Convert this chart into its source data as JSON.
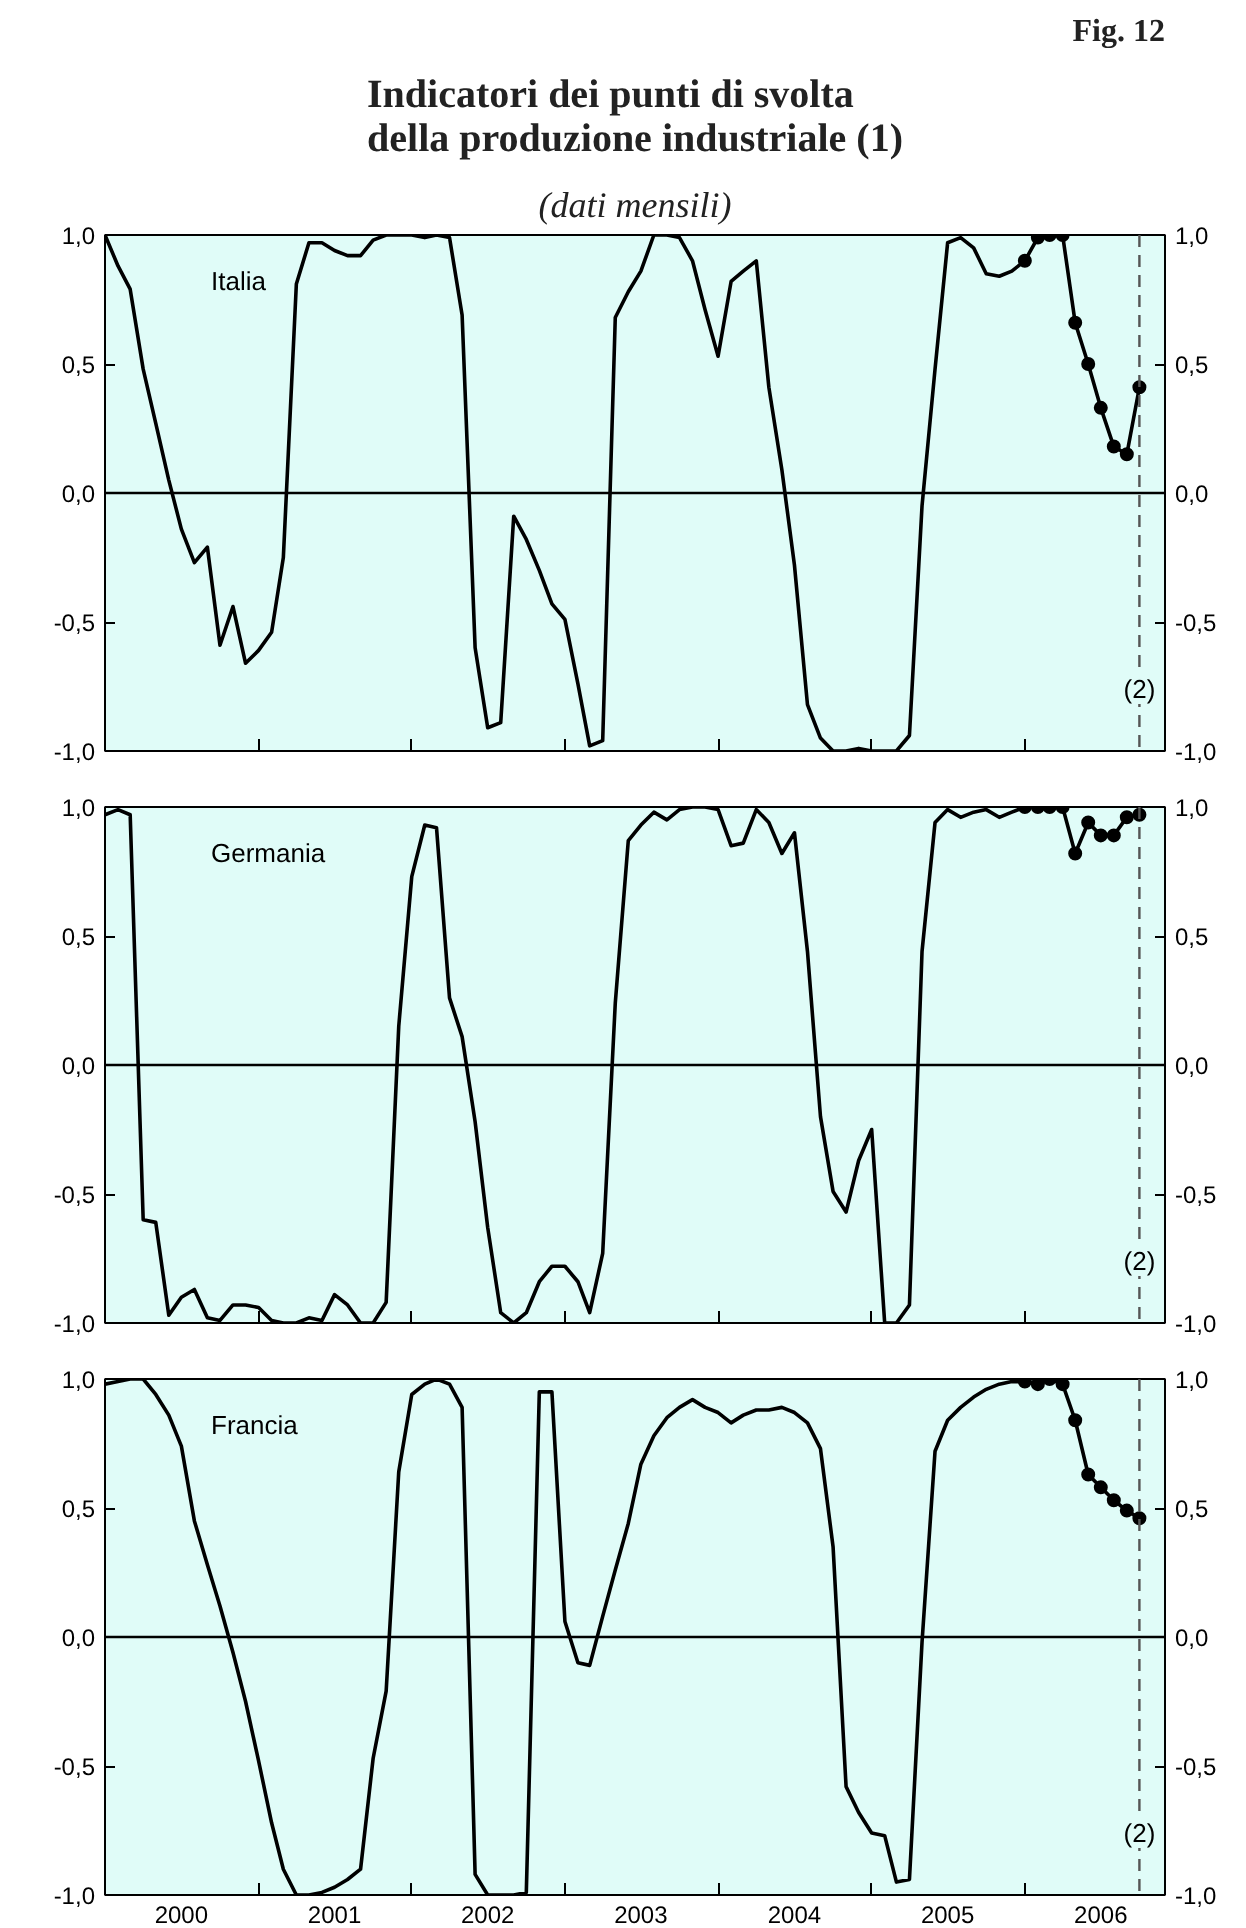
{
  "chart_data": [
    {
      "type": "line",
      "title": "Indicatori dei punti di svolta\ndella produzione industriale (1)",
      "subtitle": "(dati mensili)",
      "annotations": [
        "Fig. 12"
      ],
      "x": [
        "2000-01",
        "2000-02",
        "2000-03",
        "2000-04",
        "2000-05",
        "2000-06",
        "2000-07",
        "2000-08",
        "2000-09",
        "2000-10",
        "2000-11",
        "2000-12",
        "2001-01",
        "2001-02",
        "2001-03",
        "2001-04",
        "2001-05",
        "2001-06",
        "2001-07",
        "2001-08",
        "2001-09",
        "2001-10",
        "2001-11",
        "2001-12",
        "2002-01",
        "2002-02",
        "2002-03",
        "2002-04",
        "2002-05",
        "2002-06",
        "2002-07",
        "2002-08",
        "2002-09",
        "2002-10",
        "2002-11",
        "2002-12",
        "2003-01",
        "2003-02",
        "2003-03",
        "2003-04",
        "2003-05",
        "2003-06",
        "2003-07",
        "2003-08",
        "2003-09",
        "2003-10",
        "2003-11",
        "2003-12",
        "2004-01",
        "2004-02",
        "2004-03",
        "2004-04",
        "2004-05",
        "2004-06",
        "2004-07",
        "2004-08",
        "2004-09",
        "2004-10",
        "2004-11",
        "2004-12",
        "2005-01",
        "2005-02",
        "2005-03",
        "2005-04",
        "2005-05",
        "2005-06",
        "2005-07",
        "2005-08",
        "2005-09",
        "2005-10",
        "2005-11",
        "2005-12",
        "2006-01"
      ],
      "series": [
        {
          "name": "Italia",
          "color": "#000000",
          "marker": "none",
          "values": [
            1.0,
            0.88,
            0.79,
            0.48,
            0.27,
            0.05,
            -0.14,
            -0.27,
            -0.21,
            -0.59,
            -0.44,
            -0.66,
            -0.61,
            -0.54,
            -0.25,
            0.81,
            0.97,
            0.97,
            0.94,
            0.92,
            0.92,
            0.98,
            1.0,
            1.0,
            1.0,
            0.99,
            1.0,
            0.99,
            0.69,
            -0.6,
            -0.91,
            -0.89,
            -0.09,
            -0.18,
            -0.3,
            -0.43,
            -0.49,
            -0.74,
            -0.98,
            -0.96,
            0.68,
            0.78,
            0.86,
            1.0,
            1.0,
            0.99,
            0.9,
            0.71,
            0.53,
            0.82,
            0.86,
            0.9,
            0.41,
            0.09,
            -0.28,
            -0.82,
            -0.95,
            -1.0,
            -1.0,
            -0.99,
            -1.0,
            -1.0,
            -1.0,
            -0.94,
            -0.05,
            0.48,
            0.97,
            0.99,
            0.95,
            0.85,
            0.84,
            0.86,
            0.9
          ]
        },
        {
          "color": "#000000",
          "marker": "circle",
          "x": [
            "2006-01",
            "2006-02",
            "2006-03",
            "2006-04",
            "2006-05",
            "2006-06",
            "2006-07",
            "2006-08",
            "2006-09",
            "2006-10"
          ],
          "values": [
            0.9,
            0.99,
            1.0,
            1.0,
            0.66,
            0.5,
            0.33,
            0.18,
            0.15,
            0.41
          ]
        }
      ],
      "xlim": [
        "2000-01",
        "2006-12"
      ],
      "xticks": [
        {
          "value": "2001-01",
          "label": null
        },
        {
          "value": "2002-01",
          "label": null
        },
        {
          "value": "2003-01",
          "label": null
        },
        {
          "value": "2004-01",
          "label": null
        },
        {
          "value": "2005-01",
          "label": null
        },
        {
          "value": "2006-01",
          "label": null
        }
      ],
      "ylim": [
        -1,
        1
      ],
      "yticks": [
        {
          "value": -1,
          "label": "-1,0"
        },
        {
          "value": -0.5,
          "label": "-0,5"
        },
        {
          "value": 0,
          "label": "0,0"
        },
        {
          "value": 0.5,
          "label": "0,5"
        },
        {
          "value": 1,
          "label": "1,0"
        }
      ],
      "y2lim": [
        -1,
        1
      ],
      "y2ticks": [
        {
          "value": -1,
          "label": "-1,0"
        },
        {
          "value": -0.5,
          "label": "-0,5"
        },
        {
          "value": 0,
          "label": "0,0"
        },
        {
          "value": 0.5,
          "label": "0,5"
        },
        {
          "value": 1,
          "label": "1,0"
        }
      ],
      "ref_lines": [
        {
          "axis": "y",
          "value": 0,
          "color": "#000000",
          "line_style": "solid"
        },
        {
          "axis": "x",
          "value": "2006-10",
          "label": "(2)",
          "color": "#555555",
          "line_style": "dashed"
        }
      ],
      "grid": false,
      "tick_labels": "y"
    },
    {
      "type": "line",
      "x": [
        "2000-01",
        "2000-02",
        "2000-03",
        "2000-04",
        "2000-05",
        "2000-06",
        "2000-07",
        "2000-08",
        "2000-09",
        "2000-10",
        "2000-11",
        "2000-12",
        "2001-01",
        "2001-02",
        "2001-03",
        "2001-04",
        "2001-05",
        "2001-06",
        "2001-07",
        "2001-08",
        "2001-09",
        "2001-10",
        "2001-11",
        "2001-12",
        "2002-01",
        "2002-02",
        "2002-03",
        "2002-04",
        "2002-05",
        "2002-06",
        "2002-07",
        "2002-08",
        "2002-09",
        "2002-10",
        "2002-11",
        "2002-12",
        "2003-01",
        "2003-02",
        "2003-03",
        "2003-04",
        "2003-05",
        "2003-06",
        "2003-07",
        "2003-08",
        "2003-09",
        "2003-10",
        "2003-11",
        "2003-12",
        "2004-01",
        "2004-02",
        "2004-03",
        "2004-04",
        "2004-05",
        "2004-06",
        "2004-07",
        "2004-08",
        "2004-09",
        "2004-10",
        "2004-11",
        "2004-12",
        "2005-01",
        "2005-02",
        "2005-03",
        "2005-04",
        "2005-05",
        "2005-06",
        "2005-07",
        "2005-08",
        "2005-09",
        "2005-10",
        "2005-11",
        "2005-12",
        "2006-01"
      ],
      "series": [
        {
          "name": "Germania",
          "color": "#000000",
          "marker": "none",
          "values": [
            0.97,
            0.99,
            0.97,
            -0.6,
            -0.61,
            -0.97,
            -0.9,
            -0.87,
            -0.98,
            -0.99,
            -0.93,
            -0.93,
            -0.94,
            -0.99,
            -1.0,
            -1.0,
            -0.98,
            -0.99,
            -0.89,
            -0.93,
            -1.0,
            -1.0,
            -0.92,
            0.15,
            0.73,
            0.93,
            0.92,
            0.26,
            0.11,
            -0.22,
            -0.63,
            -0.96,
            -1.0,
            -0.96,
            -0.84,
            -0.78,
            -0.78,
            -0.84,
            -0.96,
            -0.73,
            0.24,
            0.87,
            0.93,
            0.98,
            0.95,
            0.99,
            1.0,
            1.0,
            0.99,
            0.85,
            0.86,
            0.99,
            0.94,
            0.82,
            0.9,
            0.44,
            -0.2,
            -0.49,
            -0.57,
            -0.37,
            -0.25,
            -1.0,
            -1.0,
            -0.93,
            0.44,
            0.94,
            0.99,
            0.96,
            0.98,
            0.99,
            0.96,
            0.98,
            1.0
          ]
        },
        {
          "color": "#000000",
          "marker": "circle",
          "x": [
            "2006-01",
            "2006-02",
            "2006-03",
            "2006-04",
            "2006-05",
            "2006-06",
            "2006-07",
            "2006-08",
            "2006-09",
            "2006-10"
          ],
          "values": [
            1.0,
            1.0,
            1.0,
            1.0,
            0.82,
            0.94,
            0.89,
            0.89,
            0.96,
            0.97
          ]
        }
      ],
      "xlim": [
        "2000-01",
        "2006-12"
      ],
      "xticks": [
        {
          "value": "2001-01",
          "label": null
        },
        {
          "value": "2002-01",
          "label": null
        },
        {
          "value": "2003-01",
          "label": null
        },
        {
          "value": "2004-01",
          "label": null
        },
        {
          "value": "2005-01",
          "label": null
        },
        {
          "value": "2006-01",
          "label": null
        }
      ],
      "ylim": [
        -1,
        1
      ],
      "yticks": [
        {
          "value": -1,
          "label": "-1,0"
        },
        {
          "value": -0.5,
          "label": "-0,5"
        },
        {
          "value": 0,
          "label": "0,0"
        },
        {
          "value": 0.5,
          "label": "0,5"
        },
        {
          "value": 1,
          "label": "1,0"
        }
      ],
      "y2lim": [
        -1,
        1
      ],
      "y2ticks": [
        {
          "value": -1,
          "label": "-1,0"
        },
        {
          "value": -0.5,
          "label": "-0,5"
        },
        {
          "value": 0,
          "label": "0,0"
        },
        {
          "value": 0.5,
          "label": "0,5"
        },
        {
          "value": 1,
          "label": "1,0"
        }
      ],
      "ref_lines": [
        {
          "axis": "y",
          "value": 0,
          "color": "#000000",
          "line_style": "solid"
        },
        {
          "axis": "x",
          "value": "2006-10",
          "label": "(2)",
          "color": "#555555",
          "line_style": "dashed"
        }
      ],
      "grid": false,
      "tick_labels": "y"
    },
    {
      "type": "line",
      "x": [
        "2000-01",
        "2000-02",
        "2000-03",
        "2000-04",
        "2000-05",
        "2000-06",
        "2000-07",
        "2000-08",
        "2000-09",
        "2000-10",
        "2000-11",
        "2000-12",
        "2001-01",
        "2001-02",
        "2001-03",
        "2001-04",
        "2001-05",
        "2001-06",
        "2001-07",
        "2001-08",
        "2001-09",
        "2001-10",
        "2001-11",
        "2001-12",
        "2002-01",
        "2002-02",
        "2002-03",
        "2002-04",
        "2002-05",
        "2002-06",
        "2002-07",
        "2002-08",
        "2002-09",
        "2002-10",
        "2002-11",
        "2002-12",
        "2003-01",
        "2003-02",
        "2003-03",
        "2003-04",
        "2003-05",
        "2003-06",
        "2003-07",
        "2003-08",
        "2003-09",
        "2003-10",
        "2003-11",
        "2003-12",
        "2004-01",
        "2004-02",
        "2004-03",
        "2004-04",
        "2004-05",
        "2004-06",
        "2004-07",
        "2004-08",
        "2004-09",
        "2004-10",
        "2004-11",
        "2004-12",
        "2005-01",
        "2005-02",
        "2005-03",
        "2005-04",
        "2005-05",
        "2005-06",
        "2005-07",
        "2005-08",
        "2005-09",
        "2005-10",
        "2005-11",
        "2005-12",
        "2006-01"
      ],
      "series": [
        {
          "name": "Francia",
          "color": "#000000",
          "marker": "none",
          "values": [
            0.98,
            0.99,
            1.0,
            1.0,
            0.94,
            0.86,
            0.74,
            0.45,
            0.28,
            0.12,
            -0.06,
            -0.25,
            -0.48,
            -0.72,
            -0.9,
            -1.0,
            -1.0,
            -0.99,
            -0.97,
            -0.94,
            -0.9,
            -0.47,
            -0.21,
            0.64,
            0.94,
            0.98,
            1.0,
            0.98,
            0.89,
            -0.92,
            -1.0,
            -1.0,
            -1.0,
            -0.99,
            0.95,
            0.95,
            0.06,
            -0.1,
            -0.11,
            0.08,
            0.26,
            0.44,
            0.67,
            0.78,
            0.85,
            0.89,
            0.92,
            0.89,
            0.87,
            0.83,
            0.86,
            0.88,
            0.88,
            0.89,
            0.87,
            0.83,
            0.73,
            0.35,
            -0.58,
            -0.68,
            -0.76,
            -0.77,
            -0.95,
            -0.94,
            -0.02,
            0.72,
            0.84,
            0.89,
            0.93,
            0.96,
            0.98,
            0.99,
            0.99
          ]
        },
        {
          "color": "#000000",
          "marker": "circle",
          "x": [
            "2006-01",
            "2006-02",
            "2006-03",
            "2006-04",
            "2006-05",
            "2006-06",
            "2006-07",
            "2006-08",
            "2006-09",
            "2006-10"
          ],
          "values": [
            0.99,
            0.98,
            1.0,
            0.98,
            0.84,
            0.63,
            0.58,
            0.53,
            0.49,
            0.46
          ]
        }
      ],
      "xlim": [
        "2000-01",
        "2006-12"
      ],
      "xticks": [
        {
          "value": "2000-07",
          "label": "2000"
        },
        {
          "value": "2001-07",
          "label": "2001"
        },
        {
          "value": "2002-07",
          "label": "2002"
        },
        {
          "value": "2003-07",
          "label": "2003"
        },
        {
          "value": "2004-07",
          "label": "2004"
        },
        {
          "value": "2005-07",
          "label": "2005"
        },
        {
          "value": "2006-07",
          "label": "2006"
        },
        {
          "value": "2001-01",
          "label": null
        },
        {
          "value": "2002-01",
          "label": null
        },
        {
          "value": "2003-01",
          "label": null
        },
        {
          "value": "2004-01",
          "label": null
        },
        {
          "value": "2005-01",
          "label": null
        },
        {
          "value": "2006-01",
          "label": null
        }
      ],
      "ylim": [
        -1,
        1
      ],
      "yticks": [
        {
          "value": -1,
          "label": "-1,0"
        },
        {
          "value": -0.5,
          "label": "-0,5"
        },
        {
          "value": 0,
          "label": "0,0"
        },
        {
          "value": 0.5,
          "label": "0,5"
        },
        {
          "value": 1,
          "label": "1,0"
        }
      ],
      "y2lim": [
        -1,
        1
      ],
      "y2ticks": [
        {
          "value": -1,
          "label": "-1,0"
        },
        {
          "value": -0.5,
          "label": "-0,5"
        },
        {
          "value": 0,
          "label": "0,0"
        },
        {
          "value": 0.5,
          "label": "0,5"
        },
        {
          "value": 1,
          "label": "1,0"
        }
      ],
      "ref_lines": [
        {
          "axis": "y",
          "value": 0,
          "color": "#000000",
          "line_style": "solid"
        },
        {
          "axis": "x",
          "value": "2006-10",
          "label": "(2)",
          "color": "#555555",
          "line_style": "dashed"
        }
      ],
      "grid": false
    }
  ]
}
